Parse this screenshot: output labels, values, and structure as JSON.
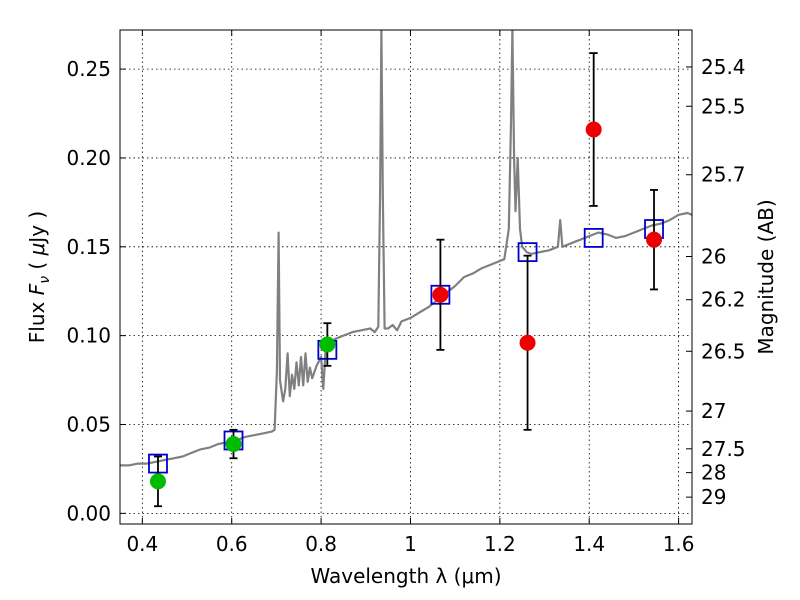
{
  "chart_data": {
    "type": "scatter",
    "xlabel": "Wavelength  λ (μm)",
    "ylabel": "Flux  Fν  ( μJy )",
    "ylabel_parts": [
      "Flux  ",
      "F",
      "ν",
      "  ( ",
      "μ",
      "Jy )"
    ],
    "y2label": "Magnitude (AB)",
    "xlim": [
      0.35,
      1.63
    ],
    "ylim": [
      -0.006,
      0.272
    ],
    "grid": true,
    "x_ticks": [
      {
        "value": 0.4,
        "label": "0.4"
      },
      {
        "value": 0.6,
        "label": "0.6"
      },
      {
        "value": 0.8,
        "label": "0.8"
      },
      {
        "value": 1.0,
        "label": "1"
      },
      {
        "value": 1.2,
        "label": "1.2"
      },
      {
        "value": 1.4,
        "label": "1.4"
      },
      {
        "value": 1.6,
        "label": "1.6"
      }
    ],
    "y_ticks": [
      {
        "value": 0.0,
        "label": "0.00"
      },
      {
        "value": 0.05,
        "label": "0.05"
      },
      {
        "value": 0.1,
        "label": "0.10"
      },
      {
        "value": 0.15,
        "label": "0.15"
      },
      {
        "value": 0.2,
        "label": "0.20"
      },
      {
        "value": 0.25,
        "label": "0.25"
      }
    ],
    "y2_ticks": [
      {
        "mag": 25.4,
        "label": "25.4"
      },
      {
        "mag": 25.5,
        "label": "25.5"
      },
      {
        "mag": 25.7,
        "label": "25.7"
      },
      {
        "mag": 26,
        "label": "26"
      },
      {
        "mag": 26.2,
        "label": "26.2"
      },
      {
        "mag": 26.5,
        "label": "26.5"
      },
      {
        "mag": 27,
        "label": "27"
      },
      {
        "mag": 27.5,
        "label": "27.5"
      },
      {
        "mag": 28,
        "label": "28"
      },
      {
        "mag": 29,
        "label": "29"
      }
    ],
    "series": [
      {
        "name": "model spectrum",
        "kind": "line",
        "color": "#808080",
        "points": [
          [
            0.35,
            0.027
          ],
          [
            0.37,
            0.027
          ],
          [
            0.39,
            0.028
          ],
          [
            0.41,
            0.028
          ],
          [
            0.43,
            0.029
          ],
          [
            0.45,
            0.03
          ],
          [
            0.47,
            0.031
          ],
          [
            0.49,
            0.032
          ],
          [
            0.51,
            0.034
          ],
          [
            0.53,
            0.036
          ],
          [
            0.55,
            0.037
          ],
          [
            0.57,
            0.039
          ],
          [
            0.59,
            0.04
          ],
          [
            0.61,
            0.041
          ],
          [
            0.63,
            0.043
          ],
          [
            0.65,
            0.044
          ],
          [
            0.67,
            0.045
          ],
          [
            0.69,
            0.046
          ],
          [
            0.696,
            0.047
          ],
          [
            0.701,
            0.08
          ],
          [
            0.705,
            0.158
          ],
          [
            0.708,
            0.075
          ],
          [
            0.715,
            0.063
          ],
          [
            0.72,
            0.07
          ],
          [
            0.725,
            0.09
          ],
          [
            0.73,
            0.066
          ],
          [
            0.735,
            0.078
          ],
          [
            0.74,
            0.07
          ],
          [
            0.745,
            0.085
          ],
          [
            0.75,
            0.072
          ],
          [
            0.755,
            0.088
          ],
          [
            0.76,
            0.072
          ],
          [
            0.765,
            0.09
          ],
          [
            0.77,
            0.074
          ],
          [
            0.775,
            0.082
          ],
          [
            0.78,
            0.076
          ],
          [
            0.79,
            0.083
          ],
          [
            0.8,
            0.088
          ],
          [
            0.805,
            0.07
          ],
          [
            0.81,
            0.092
          ],
          [
            0.82,
            0.095
          ],
          [
            0.83,
            0.098
          ],
          [
            0.85,
            0.1
          ],
          [
            0.87,
            0.102
          ],
          [
            0.89,
            0.103
          ],
          [
            0.91,
            0.104
          ],
          [
            0.92,
            0.102
          ],
          [
            0.928,
            0.105
          ],
          [
            0.932,
            0.18
          ],
          [
            0.935,
            0.272
          ],
          [
            0.938,
            0.18
          ],
          [
            0.942,
            0.104
          ],
          [
            0.95,
            0.104
          ],
          [
            0.96,
            0.106
          ],
          [
            0.97,
            0.103
          ],
          [
            0.98,
            0.108
          ],
          [
            1.0,
            0.11
          ],
          [
            1.02,
            0.113
          ],
          [
            1.04,
            0.116
          ],
          [
            1.06,
            0.12
          ],
          [
            1.08,
            0.124
          ],
          [
            1.1,
            0.128
          ],
          [
            1.12,
            0.133
          ],
          [
            1.14,
            0.135
          ],
          [
            1.16,
            0.138
          ],
          [
            1.18,
            0.14
          ],
          [
            1.2,
            0.142
          ],
          [
            1.21,
            0.143
          ],
          [
            1.22,
            0.16
          ],
          [
            1.225,
            0.22
          ],
          [
            1.228,
            0.272
          ],
          [
            1.232,
            0.2
          ],
          [
            1.235,
            0.17
          ],
          [
            1.24,
            0.2
          ],
          [
            1.245,
            0.16
          ],
          [
            1.25,
            0.15
          ],
          [
            1.26,
            0.147
          ],
          [
            1.27,
            0.146
          ],
          [
            1.29,
            0.147
          ],
          [
            1.31,
            0.148
          ],
          [
            1.33,
            0.15
          ],
          [
            1.335,
            0.165
          ],
          [
            1.34,
            0.15
          ],
          [
            1.36,
            0.152
          ],
          [
            1.38,
            0.154
          ],
          [
            1.4,
            0.156
          ],
          [
            1.42,
            0.158
          ],
          [
            1.44,
            0.157
          ],
          [
            1.46,
            0.155
          ],
          [
            1.48,
            0.156
          ],
          [
            1.5,
            0.158
          ],
          [
            1.52,
            0.16
          ],
          [
            1.54,
            0.162
          ],
          [
            1.56,
            0.163
          ],
          [
            1.58,
            0.165
          ],
          [
            1.6,
            0.168
          ],
          [
            1.62,
            0.169
          ],
          [
            1.63,
            0.168
          ]
        ]
      },
      {
        "name": "model photometry",
        "kind": "open-square",
        "color": "#0000cc",
        "points": [
          [
            0.435,
            0.028
          ],
          [
            0.604,
            0.041
          ],
          [
            0.814,
            0.092
          ],
          [
            1.067,
            0.123
          ],
          [
            1.262,
            0.147
          ],
          [
            1.41,
            0.155
          ],
          [
            1.545,
            0.16
          ]
        ]
      },
      {
        "name": "observed (green)",
        "kind": "filled-circle",
        "color": "#00bb00",
        "points": [
          {
            "x": 0.435,
            "y": 0.018,
            "err": 0.014
          },
          {
            "x": 0.604,
            "y": 0.039,
            "err": 0.008
          },
          {
            "x": 0.814,
            "y": 0.095,
            "err": 0.012
          }
        ]
      },
      {
        "name": "observed (red)",
        "kind": "filled-circle",
        "color": "#ee0000",
        "points": [
          {
            "x": 1.067,
            "y": 0.123,
            "err": 0.031
          },
          {
            "x": 1.262,
            "y": 0.096,
            "err": 0.049
          },
          {
            "x": 1.41,
            "y": 0.216,
            "err": 0.043
          },
          {
            "x": 1.545,
            "y": 0.154,
            "err": 0.028
          }
        ]
      }
    ]
  }
}
